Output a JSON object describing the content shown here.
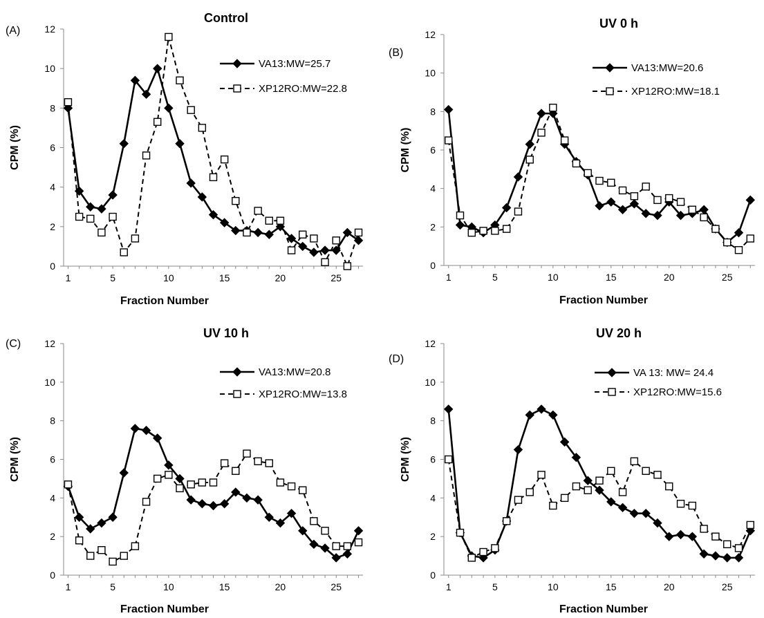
{
  "chart_data": [
    {
      "type": "line",
      "panel": "(A)",
      "title": "Control",
      "xlabel": "Fraction Number",
      "ylabel": "CPM (%)",
      "ylim": [
        0,
        12
      ],
      "yticks": [
        0,
        2,
        4,
        6,
        8,
        10,
        12
      ],
      "xticks": [
        1,
        5,
        10,
        15,
        20,
        25
      ],
      "xlim": [
        0.6,
        27.4
      ],
      "legend_position": "top-right",
      "series": [
        {
          "name": "VA13:MW=25.7",
          "style": "solid-diamond",
          "x": [
            1,
            2,
            3,
            4,
            5,
            6,
            7,
            8,
            9,
            10,
            11,
            12,
            13,
            14,
            15,
            16,
            17,
            18,
            19,
            20,
            21,
            22,
            23,
            24,
            25,
            26,
            27
          ],
          "values": [
            8.0,
            3.8,
            3.0,
            2.9,
            3.6,
            6.2,
            9.4,
            8.7,
            10.0,
            8.0,
            6.2,
            4.2,
            3.5,
            2.6,
            2.2,
            1.8,
            1.8,
            1.7,
            1.6,
            2.0,
            1.4,
            1.0,
            0.7,
            0.8,
            0.8,
            1.7,
            1.3
          ]
        },
        {
          "name": "XP12RO:MW=22.8",
          "style": "dashed-square",
          "x": [
            1,
            2,
            3,
            4,
            5,
            6,
            7,
            8,
            9,
            10,
            11,
            12,
            13,
            14,
            15,
            16,
            17,
            18,
            19,
            20,
            21,
            22,
            23,
            24,
            25,
            26,
            27
          ],
          "values": [
            8.3,
            2.5,
            2.4,
            1.7,
            2.5,
            0.7,
            1.4,
            5.6,
            7.3,
            11.6,
            9.4,
            7.9,
            7.0,
            4.5,
            5.4,
            3.3,
            1.7,
            2.8,
            2.3,
            2.3,
            0.8,
            1.6,
            1.4,
            0.2,
            1.3,
            0.0,
            1.7
          ]
        }
      ]
    },
    {
      "type": "line",
      "panel": "(B)",
      "title": "UV 0 h",
      "xlabel": "Fraction Number",
      "ylabel": "CPM (%)",
      "ylim": [
        0,
        12
      ],
      "yticks": [
        0,
        2,
        4,
        6,
        8,
        10,
        12
      ],
      "xticks": [
        1,
        5,
        10,
        15,
        20,
        25
      ],
      "xlim": [
        0.6,
        27.4
      ],
      "legend_position": "top-right",
      "series": [
        {
          "name": "VA13:MW=20.6",
          "style": "solid-diamond",
          "x": [
            1,
            2,
            3,
            4,
            5,
            6,
            7,
            8,
            9,
            10,
            11,
            12,
            13,
            14,
            15,
            16,
            17,
            18,
            19,
            20,
            21,
            22,
            23,
            24,
            25,
            26,
            27
          ],
          "values": [
            8.1,
            2.1,
            2.0,
            1.7,
            2.1,
            3.0,
            4.6,
            6.3,
            7.9,
            7.9,
            6.3,
            5.4,
            4.7,
            3.1,
            3.3,
            2.9,
            3.2,
            2.7,
            2.6,
            3.3,
            2.6,
            2.7,
            2.9,
            1.9,
            1.2,
            1.7,
            3.4
          ]
        },
        {
          "name": "XP12RO:MW=18.1",
          "style": "dashed-square",
          "x": [
            1,
            2,
            3,
            4,
            5,
            6,
            7,
            8,
            9,
            10,
            11,
            12,
            13,
            14,
            15,
            16,
            17,
            18,
            19,
            20,
            21,
            22,
            23,
            24,
            25,
            26,
            27
          ],
          "values": [
            6.5,
            2.6,
            1.7,
            1.8,
            1.8,
            1.9,
            2.8,
            5.5,
            6.9,
            8.2,
            6.5,
            5.3,
            4.8,
            4.4,
            4.3,
            3.9,
            3.6,
            4.1,
            3.4,
            3.5,
            3.3,
            2.9,
            2.5,
            1.9,
            1.2,
            0.8,
            1.4
          ]
        }
      ]
    },
    {
      "type": "line",
      "panel": "(C)",
      "title": "UV 10 h",
      "xlabel": "Fraction Number",
      "ylabel": "CPM (%)",
      "ylim": [
        0,
        12
      ],
      "yticks": [
        0,
        2,
        4,
        6,
        8,
        10,
        12
      ],
      "xticks": [
        1,
        5,
        10,
        15,
        20,
        25
      ],
      "xlim": [
        0.6,
        27.4
      ],
      "legend_position": "top-right",
      "series": [
        {
          "name": "VA13:MW=20.8",
          "style": "solid-diamond",
          "x": [
            1,
            2,
            3,
            4,
            5,
            6,
            7,
            8,
            9,
            10,
            11,
            12,
            13,
            14,
            15,
            16,
            17,
            18,
            19,
            20,
            21,
            22,
            23,
            24,
            25,
            26,
            27
          ],
          "values": [
            4.6,
            3.0,
            2.4,
            2.7,
            3.0,
            5.3,
            7.6,
            7.5,
            7.1,
            5.7,
            5.0,
            3.9,
            3.7,
            3.6,
            3.7,
            4.3,
            4.0,
            3.9,
            3.0,
            2.7,
            3.2,
            2.3,
            1.6,
            1.4,
            0.9,
            1.1,
            2.3
          ]
        },
        {
          "name": "XP12RO:MW=13.8",
          "style": "dashed-square",
          "x": [
            1,
            2,
            3,
            4,
            5,
            6,
            7,
            8,
            9,
            10,
            11,
            12,
            13,
            14,
            15,
            16,
            17,
            18,
            19,
            20,
            21,
            22,
            23,
            24,
            25,
            26,
            27
          ],
          "values": [
            4.7,
            1.8,
            1.0,
            1.3,
            0.7,
            1.0,
            1.5,
            3.8,
            5.0,
            5.2,
            4.5,
            4.7,
            4.8,
            4.8,
            5.8,
            5.4,
            6.3,
            5.9,
            5.8,
            4.8,
            4.6,
            4.4,
            2.8,
            2.3,
            1.5,
            1.5,
            1.7
          ]
        }
      ]
    },
    {
      "type": "line",
      "panel": "(D)",
      "title": "UV 20 h",
      "xlabel": "Fraction Number",
      "ylabel": "CPM (%)",
      "ylim": [
        0,
        12
      ],
      "yticks": [
        0,
        2,
        4,
        6,
        8,
        10,
        12
      ],
      "xticks": [
        1,
        5,
        10,
        15,
        20,
        25
      ],
      "xlim": [
        0.6,
        27.4
      ],
      "legend_position": "top-right",
      "series": [
        {
          "name": "VA 13: MW= 24.4",
          "style": "solid-diamond",
          "x": [
            1,
            2,
            3,
            4,
            5,
            6,
            7,
            8,
            9,
            10,
            11,
            12,
            13,
            14,
            15,
            16,
            17,
            18,
            19,
            20,
            21,
            22,
            23,
            24,
            25,
            26,
            27
          ],
          "values": [
            8.6,
            2.2,
            1.0,
            0.9,
            1.3,
            2.8,
            6.5,
            8.3,
            8.6,
            8.3,
            6.9,
            6.1,
            4.9,
            4.4,
            3.8,
            3.5,
            3.2,
            3.2,
            2.7,
            2.0,
            2.1,
            2.0,
            1.1,
            1.0,
            0.9,
            0.9,
            2.3
          ]
        },
        {
          "name": "XP12RO:MW=15.6",
          "style": "dashed-square",
          "x": [
            1,
            2,
            3,
            4,
            5,
            6,
            7,
            8,
            9,
            10,
            11,
            12,
            13,
            14,
            15,
            16,
            17,
            18,
            19,
            20,
            21,
            22,
            23,
            24,
            25,
            26,
            27
          ],
          "values": [
            6.0,
            2.2,
            0.9,
            1.2,
            1.4,
            2.8,
            3.9,
            4.3,
            5.2,
            3.6,
            4.0,
            4.6,
            4.4,
            4.9,
            5.4,
            4.3,
            5.9,
            5.4,
            5.2,
            4.6,
            3.7,
            3.6,
            2.4,
            2.0,
            1.6,
            1.4,
            2.6
          ]
        }
      ]
    }
  ]
}
